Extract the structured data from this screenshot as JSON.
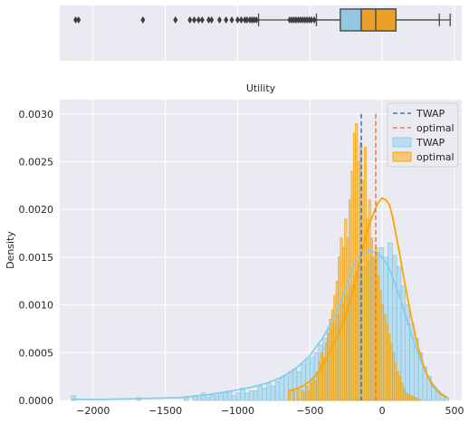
{
  "chart_data": [
    {
      "type": "box",
      "orientation": "horizontal",
      "xlim": [
        -2230,
        550
      ],
      "boxes": [
        {
          "name": "TWAP",
          "color": "#92c9e0",
          "q1": -290,
          "median": -145,
          "q3": 95,
          "whisker_low": -855,
          "whisker_high": 395,
          "outliers": [
            -2120,
            -2100,
            -1655,
            -1430,
            -1330,
            -1300,
            -1270,
            -1245,
            -1200,
            -1180,
            -1125,
            -1080,
            -1040,
            -1000,
            -975,
            -950,
            -935,
            -915,
            -900,
            -885,
            -870
          ]
        },
        {
          "name": "optimal",
          "color": "#eba029",
          "q1": -145,
          "median": -45,
          "q3": 95,
          "whisker_low": -455,
          "whisker_high": 470,
          "outliers": [
            -640,
            -625,
            -610,
            -595,
            -580,
            -565,
            -550,
            -535,
            -520,
            -505,
            -490,
            -470
          ]
        }
      ]
    },
    {
      "type": "histogram",
      "title": "Utility",
      "xlabel": "",
      "ylabel": "Density",
      "xlim": [
        -2230,
        550
      ],
      "ylim": [
        0,
        0.00315
      ],
      "xticks": [
        -2000,
        -1500,
        -1000,
        -500,
        0,
        500
      ],
      "xtick_labels": [
        "−2000",
        "−1500",
        "−1000",
        "−500",
        "0",
        "500"
      ],
      "yticks": [
        0,
        0.0005,
        0.001,
        0.0015,
        0.002,
        0.0025,
        0.003
      ],
      "ytick_labels": [
        "0.0000",
        "0.0005",
        "0.0010",
        "0.0015",
        "0.0020",
        "0.0025",
        "0.0030"
      ],
      "grid": true,
      "legend_position": "top-right",
      "legend": [
        {
          "label": "TWAP",
          "kind": "dashed-line",
          "color": "#4c72b0"
        },
        {
          "label": "optimal",
          "kind": "dashed-line",
          "color": "#dd8452"
        },
        {
          "label": "TWAP",
          "kind": "patch",
          "color": "#87ceeb"
        },
        {
          "label": "optimal",
          "kind": "patch",
          "color": "#ffa500"
        }
      ],
      "vlines": [
        {
          "name": "TWAP",
          "x": -145,
          "color": "#4c72b0"
        },
        {
          "name": "optimal",
          "x": -45,
          "color": "#dd8452"
        }
      ],
      "series": [
        {
          "name": "TWAP",
          "color": "#87ceeb",
          "bin_start": -2150,
          "bin_width": 30,
          "density": [
            5e-05,
            0,
            0,
            0,
            0,
            0,
            0,
            0,
            0,
            0,
            0,
            0,
            0,
            0,
            0,
            3e-05,
            0,
            0,
            0,
            0,
            0,
            0,
            0,
            0,
            0,
            0,
            3e-05,
            0,
            5e-05,
            3e-05,
            8e-05,
            3e-05,
            5e-05,
            5e-05,
            8e-05,
            8e-05,
            0.0001,
            5e-05,
            8e-05,
            0.00013,
            8e-05,
            0.0001,
            0.0001,
            0.00015,
            0.00013,
            0.00018,
            0.00015,
            0.0002,
            0.00023,
            0.00025,
            0.0003,
            0.00033,
            0.0003,
            0.00038,
            0.00043,
            0.00045,
            0.0005,
            0.00058,
            0.00065,
            0.00075,
            0.0008,
            0.0009,
            0.001,
            0.0011,
            0.0012,
            0.0013,
            0.00135,
            0.0014,
            0.00145,
            0.0015,
            0.00155,
            0.0016,
            0.0015,
            0.00165,
            0.00152,
            0.0014,
            0.0012,
            0.001,
            0.0008,
            0.00065,
            0.0005,
            0.00035,
            0.00025,
            0.00015,
            0.0001,
            6e-05,
            3e-05
          ],
          "kde_x": [
            -2150,
            -1900,
            -1650,
            -1400,
            -1200,
            -1000,
            -900,
            -800,
            -700,
            -600,
            -500,
            -400,
            -300,
            -250,
            -200,
            -150,
            -100,
            -50,
            0,
            50,
            100,
            150,
            200,
            250,
            300,
            350,
            400,
            450
          ],
          "kde_y": [
            1e-05,
            1e-05,
            2e-05,
            3e-05,
            6e-05,
            0.00011,
            0.00014,
            0.00018,
            0.00024,
            0.00033,
            0.00047,
            0.00068,
            0.00098,
            0.00118,
            0.0014,
            0.00153,
            0.00157,
            0.00155,
            0.0015,
            0.00138,
            0.00118,
            0.00095,
            0.0007,
            0.00048,
            0.0003,
            0.00017,
            8e-05,
            3e-05
          ]
        },
        {
          "name": "optimal",
          "color": "#ffa500",
          "bin_start": -650,
          "bin_width": 15,
          "density": [
            0.0001,
            0,
            0.0001,
            0,
            0.00012,
            0,
            0.0001,
            8e-05,
            0.00015,
            0.0001,
            0.00018,
            0.00022,
            0.0002,
            0.0003,
            0.0004,
            0.0005,
            0.00045,
            0.0006,
            0.0007,
            0.00085,
            0.00095,
            0.0011,
            0.00125,
            0.0015,
            0.0017,
            0.0016,
            0.0019,
            0.0017,
            0.0021,
            0.0024,
            0.0028,
            0.0029,
            0.0025,
            0.0027,
            0.0023,
            0.00265,
            0.0019,
            0.0021,
            0.0017,
            0.0015,
            0.0016,
            0.0013,
            0.00115,
            0.001,
            0.0009,
            0.0008,
            0.0007,
            0.0006,
            0.0005,
            0.0004,
            0.0003,
            0.00025,
            0.00018,
            0.00012,
            8e-05,
            6e-05,
            5e-05,
            4e-05,
            3e-05,
            2e-05,
            1e-05
          ],
          "kde_x": [
            -650,
            -600,
            -550,
            -500,
            -450,
            -400,
            -350,
            -300,
            -250,
            -200,
            -150,
            -100,
            -75,
            -50,
            -25,
            0,
            25,
            50,
            75,
            100,
            125,
            150,
            200,
            250,
            300,
            350,
            400,
            450
          ],
          "kde_y": [
            0.0001,
            0.00012,
            0.00015,
            0.0002,
            0.00028,
            0.0004,
            0.00055,
            0.0007,
            0.0009,
            0.00115,
            0.0015,
            0.0018,
            0.0019,
            0.002,
            0.00208,
            0.00212,
            0.0021,
            0.00205,
            0.0019,
            0.0017,
            0.0015,
            0.00128,
            0.00088,
            0.00055,
            0.0003,
            0.00015,
            7e-05,
            3e-05
          ]
        }
      ]
    }
  ]
}
